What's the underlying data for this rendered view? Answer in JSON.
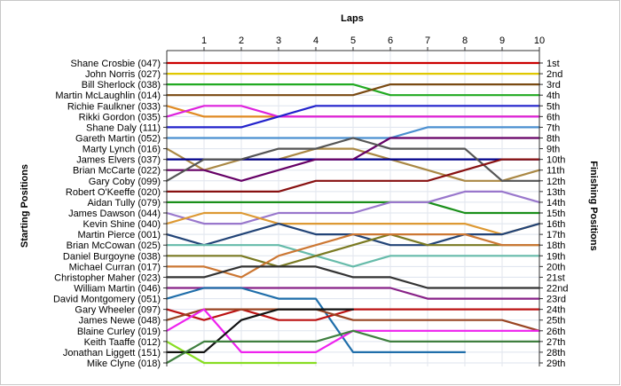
{
  "chart_data": {
    "type": "line",
    "title": "",
    "xlabel": "Laps",
    "ylabel": "Starting Positions",
    "y2label": "Finishing Positions",
    "x": [
      0,
      1,
      2,
      3,
      4,
      5,
      6,
      7,
      8,
      9,
      10
    ],
    "x_tick_labels": [
      "1",
      "2",
      "3",
      "4",
      "5",
      "6",
      "7",
      "8",
      "9",
      "10"
    ],
    "ylim": [
      1,
      29
    ],
    "y_inverted": true,
    "grid": true,
    "starting_positions": [
      "Shane Crosbie (047)",
      "John Norris (027)",
      "Bill Sherlock (038)",
      "Martin McLaughlin (014)",
      "Richie Faulkner (033)",
      "Rikki Gordon (035)",
      "Shane Daly (111)",
      "Gareth Martin (052)",
      "Marty Lynch (016)",
      "James Elvers (037)",
      "Brian McCarte (022)",
      "Gary Coby (099)",
      "Robert O'Keeffe (020)",
      "Aidan Tully (079)",
      "James Dawson (044)",
      "Kevin Shine (040)",
      "Martin Pierce (001)",
      "Brian McCowan (025)",
      "Daniel Burgoyne (038)",
      "Michael Curran (017)",
      "Christopher Maher (023)",
      "William Martin (046)",
      "David Montgomery (051)",
      "Gary Wheeler (097)",
      "James Newe (048)",
      "Blaine Curley (019)",
      "Keith Taaffe (012)",
      "Jonathan Liggett (151)",
      "Mike Clyne (018)"
    ],
    "finishing_positions": [
      "1st",
      "2nd",
      "3rd",
      "4th",
      "5th",
      "6th",
      "7th",
      "8th",
      "9th",
      "10th",
      "11th",
      "12th",
      "13th",
      "14th",
      "15th",
      "16th",
      "17th",
      "18th",
      "19th",
      "20th",
      "21st",
      "22nd",
      "23rd",
      "24th",
      "25th",
      "26th",
      "27th",
      "28th",
      "29th"
    ],
    "series": [
      {
        "color": "#cc0000",
        "values": [
          1,
          1,
          1,
          1,
          1,
          1,
          1,
          1,
          1,
          1,
          1
        ]
      },
      {
        "color": "#e0c800",
        "values": [
          2,
          2,
          2,
          2,
          2,
          2,
          2,
          2,
          2,
          2,
          2
        ]
      },
      {
        "color": "#22aa22",
        "values": [
          3,
          3,
          3,
          3,
          3,
          3,
          4,
          4,
          4,
          4,
          4
        ]
      },
      {
        "color": "#7a4a12",
        "values": [
          4,
          4,
          4,
          4,
          4,
          4,
          3,
          3,
          3,
          3,
          3
        ]
      },
      {
        "color": "#e08a22",
        "values": [
          5,
          6,
          6,
          6,
          6,
          6,
          6,
          6,
          6,
          6,
          6
        ]
      },
      {
        "color": "#dd22dd",
        "values": [
          6,
          5,
          5,
          6,
          6,
          6,
          6,
          6,
          6,
          6,
          6
        ]
      },
      {
        "color": "#2222cc",
        "values": [
          7,
          7,
          7,
          6,
          5,
          5,
          5,
          5,
          5,
          5,
          5
        ]
      },
      {
        "color": "#4a8fd0",
        "values": [
          8,
          8,
          8,
          8,
          8,
          8,
          8,
          7,
          7,
          7,
          7
        ]
      },
      {
        "color": "#aa8844",
        "values": [
          9,
          11,
          10,
          10,
          9,
          9,
          10,
          11,
          12,
          12,
          11
        ]
      },
      {
        "color": "#00008b",
        "values": [
          10,
          10,
          10,
          10,
          10,
          10,
          10,
          10,
          10,
          10,
          10
        ]
      },
      {
        "color": "#660066",
        "values": [
          11,
          11,
          12,
          11,
          10,
          10,
          8,
          8,
          8,
          8,
          8
        ]
      },
      {
        "color": "#555555",
        "values": [
          12,
          10,
          10,
          9,
          9,
          8,
          9,
          9,
          9,
          12,
          12
        ]
      },
      {
        "color": "#881111",
        "values": [
          13,
          13,
          13,
          13,
          12,
          12,
          12,
          12,
          11,
          10,
          10
        ]
      },
      {
        "color": "#1a8f1a",
        "values": [
          14,
          14,
          14,
          14,
          14,
          14,
          14,
          14,
          15,
          15,
          15
        ]
      },
      {
        "color": "#9977cc",
        "values": [
          15,
          16,
          16,
          15,
          15,
          15,
          14,
          14,
          13,
          13,
          14
        ]
      },
      {
        "color": "#dd9933",
        "values": [
          16,
          15,
          15,
          16,
          16,
          16,
          16,
          16,
          16,
          17,
          16
        ]
      },
      {
        "color": "#224477",
        "values": [
          17,
          18,
          17,
          16,
          17,
          17,
          18,
          18,
          17,
          17,
          16
        ]
      },
      {
        "color": "#66bbaa",
        "values": [
          18,
          18,
          18,
          18,
          19,
          20,
          19,
          19,
          19,
          19,
          19
        ]
      },
      {
        "color": "#7a7a22",
        "values": [
          19,
          19,
          19,
          20,
          19,
          18,
          17,
          18,
          18,
          18,
          18
        ]
      },
      {
        "color": "#cc7733",
        "values": [
          20,
          20,
          21,
          19,
          18,
          17,
          17,
          17,
          17,
          18,
          18
        ]
      },
      {
        "color": "#333333",
        "values": [
          21,
          21,
          20,
          20,
          20,
          21,
          21,
          22,
          22,
          22,
          22
        ]
      },
      {
        "color": "#882288",
        "values": [
          22,
          22,
          22,
          22,
          22,
          22,
          22,
          23,
          23,
          23,
          23
        ]
      },
      {
        "color": "#1f6eaa",
        "values": [
          23,
          22,
          22,
          23,
          23,
          28,
          28,
          28,
          28,
          null,
          null
        ]
      },
      {
        "color": "#bb1111",
        "values": [
          24,
          25,
          24,
          25,
          25,
          24,
          24,
          24,
          24,
          24,
          24
        ]
      },
      {
        "color": "#994422",
        "values": [
          25,
          24,
          24,
          24,
          24,
          25,
          25,
          25,
          25,
          25,
          26
        ]
      },
      {
        "color": "#ee22ee",
        "values": [
          26,
          24,
          28,
          28,
          28,
          26,
          26,
          26,
          26,
          26,
          26
        ]
      },
      {
        "color": "#88dd22",
        "values": [
          27,
          29,
          29,
          29,
          29,
          null,
          null,
          null,
          null,
          null,
          null
        ]
      },
      {
        "color": "#111111",
        "values": [
          28,
          28,
          25,
          24,
          24,
          24,
          null,
          null,
          null,
          null,
          null
        ]
      },
      {
        "color": "#3f7f3f",
        "values": [
          29,
          27,
          27,
          27,
          27,
          26,
          27,
          27,
          27,
          27,
          27
        ]
      }
    ]
  }
}
